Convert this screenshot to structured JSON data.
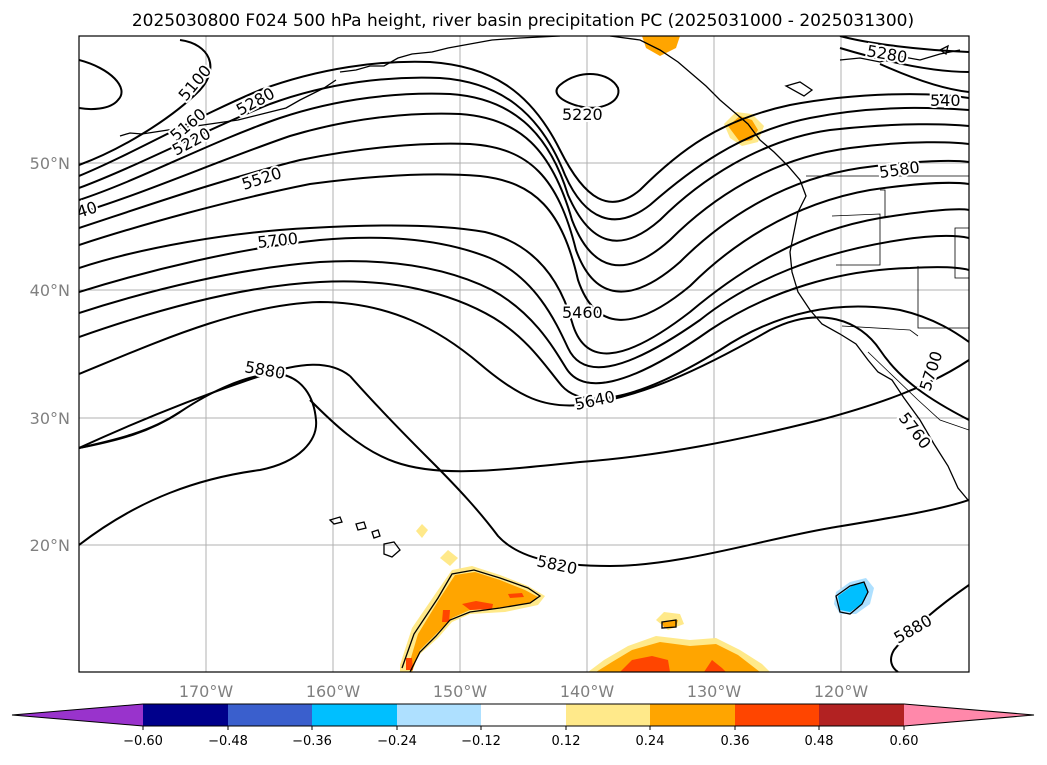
{
  "title": "2025030800 F024 500 hPa height, river basin precipitation PC (2025031000 - 2025031300)",
  "map": {
    "lat_ticks": [
      "50°N",
      "40°N",
      "30°N",
      "20°N"
    ],
    "lon_ticks": [
      "170°W",
      "160°W",
      "150°W",
      "140°W",
      "130°W",
      "120°W"
    ],
    "contour_labels": [
      "5100",
      "5160",
      "5220",
      "5280",
      "5220",
      "5280",
      "540",
      "5520",
      "40",
      "5580",
      "5700",
      "5460",
      "5880",
      "5640",
      "5700",
      "5760",
      "5820",
      "5880"
    ]
  },
  "colorbar": {
    "ticks": [
      "−0.60",
      "−0.48",
      "−0.36",
      "−0.24",
      "−0.12",
      "0.12",
      "0.24",
      "0.36",
      "0.48",
      "0.60"
    ],
    "colors": [
      "#9933cc",
      "#00008b",
      "#3a5fcd",
      "#00bfff",
      "#aee0ff",
      "#ffffff",
      "#ffe98a",
      "#ffa500",
      "#ff4500",
      "#b22222",
      "#ff88aa",
      "#ff88aa"
    ]
  }
}
